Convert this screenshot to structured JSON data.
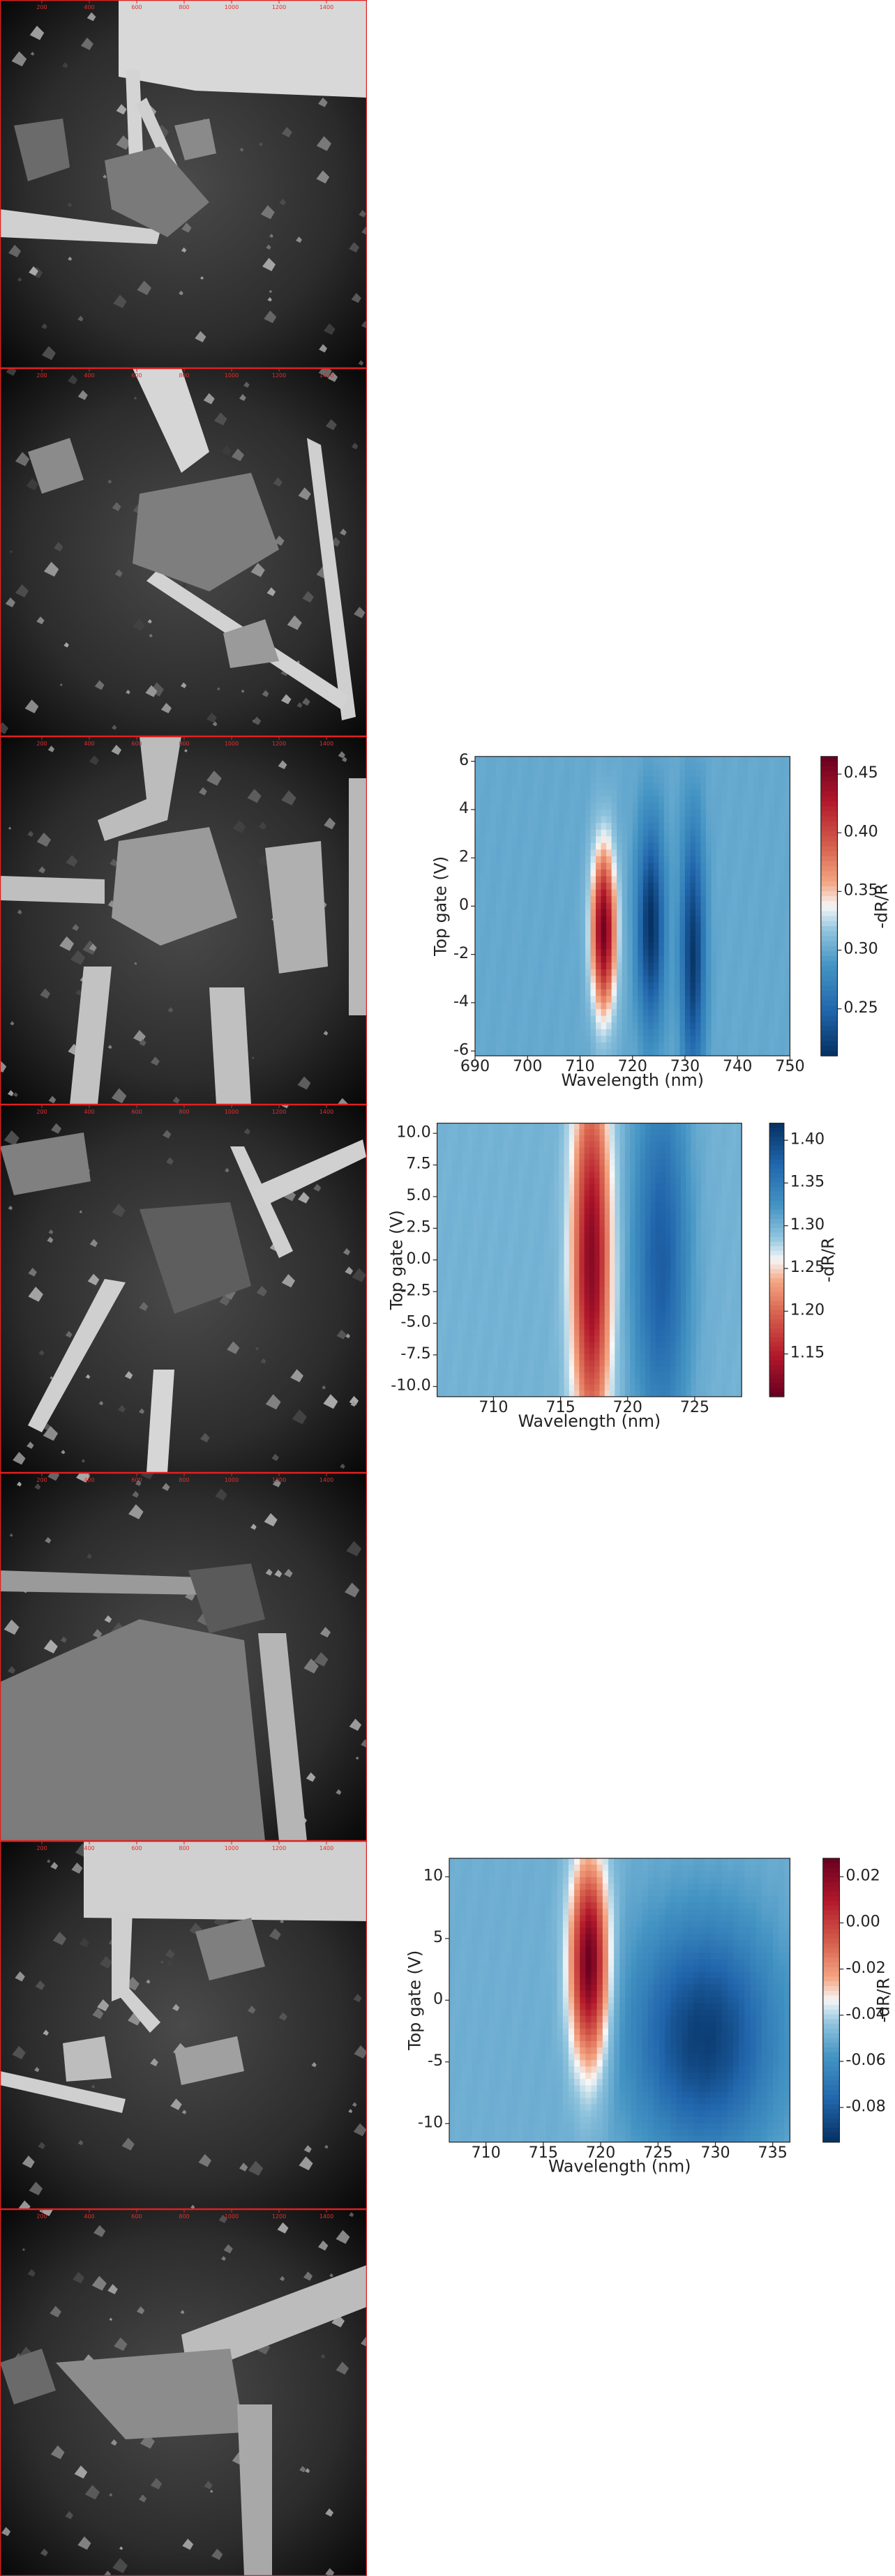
{
  "micrographs": [
    {
      "label": "micrograph-1",
      "scale_ticks": [
        "200",
        "400",
        "600",
        "800",
        "1000",
        "1200",
        "1400"
      ]
    },
    {
      "label": "micrograph-2",
      "scale_ticks": [
        "200",
        "400",
        "600",
        "800",
        "1000",
        "1200",
        "1400"
      ]
    },
    {
      "label": "micrograph-3",
      "scale_ticks": [
        "200",
        "400",
        "600",
        "800",
        "1000",
        "1200",
        "1400"
      ]
    },
    {
      "label": "micrograph-4",
      "scale_ticks": [
        "200",
        "400",
        "600",
        "800",
        "1000",
        "1200",
        "1400"
      ]
    },
    {
      "label": "micrograph-5",
      "scale_ticks": [
        "200",
        "400",
        "600",
        "800",
        "1000",
        "1200",
        "1400"
      ]
    },
    {
      "label": "micrograph-6",
      "scale_ticks": [
        "200",
        "400",
        "600",
        "800",
        "1000",
        "1200",
        "1400"
      ]
    },
    {
      "label": "micrograph-7",
      "scale_ticks": [
        "200",
        "400",
        "600",
        "800",
        "1000",
        "1200",
        "1400"
      ]
    }
  ],
  "chart_data": [
    {
      "type": "heatmap",
      "xlabel": "Wavelength (nm)",
      "ylabel": "Top gate (V)",
      "colorbar_label": "-dR/R",
      "xlim": [
        690,
        750
      ],
      "ylim": [
        -6.2,
        6.2
      ],
      "xticks": [
        690,
        700,
        710,
        720,
        730,
        740,
        750
      ],
      "yticks": [
        -6,
        -4,
        -2,
        0,
        2,
        4,
        6
      ],
      "clim": [
        0.21,
        0.465
      ],
      "cticks": [
        0.25,
        0.3,
        0.35,
        0.4,
        0.45
      ],
      "colormap": "RdBu_r",
      "background_level": 0.3,
      "features": [
        {
          "kind": "peak",
          "center_x": 714.5,
          "center_y": -1.0,
          "width_x": 2.2,
          "width_y": 3.2,
          "value": 0.46
        },
        {
          "kind": "dip",
          "center_x": 723.5,
          "center_y": -0.8,
          "width_x": 2.5,
          "width_y": 4.0,
          "value": 0.21
        },
        {
          "kind": "dip",
          "center_x": 731.5,
          "center_y": -2.0,
          "width_x": 2.2,
          "width_y": 5.0,
          "value": 0.215
        }
      ]
    },
    {
      "type": "heatmap",
      "xlabel": "Wavelength (nm)",
      "ylabel": "Top gate (V)",
      "colorbar_label": "-dR/R",
      "xlim": [
        705.8,
        728.5
      ],
      "ylim": [
        -10.8,
        10.8
      ],
      "xticks": [
        710,
        715,
        720,
        725
      ],
      "yticks": [
        -10.0,
        -7.5,
        -5.0,
        -2.5,
        0.0,
        2.5,
        5.0,
        7.5,
        10.0
      ],
      "clim": [
        1.1,
        1.42
      ],
      "cticks": [
        1.15,
        1.2,
        1.25,
        1.3,
        1.35,
        1.4
      ],
      "colormap": "RdBu",
      "background_level": 1.3,
      "features": [
        {
          "kind": "low",
          "center_x": 717.3,
          "center_y": 0.0,
          "width_x": 1.4,
          "width_y": 14.0,
          "value": 1.12
        },
        {
          "kind": "high",
          "center_x": 722.5,
          "center_y": 0.0,
          "width_x": 2.0,
          "width_y": 14.0,
          "value": 1.38
        }
      ]
    },
    {
      "type": "heatmap",
      "xlabel": "Wavelength (nm)",
      "ylabel": "Top gate (V)",
      "colorbar_label": "-dR/R",
      "xlim": [
        706.8,
        736.5
      ],
      "ylim": [
        -11.5,
        11.5
      ],
      "xticks": [
        710,
        715,
        720,
        725,
        730,
        735
      ],
      "yticks": [
        -10,
        -5,
        0,
        5,
        10
      ],
      "clim": [
        -0.095,
        0.028
      ],
      "cticks": [
        -0.08,
        -0.06,
        -0.04,
        -0.02,
        0.0,
        0.02
      ],
      "colormap": "RdBu_r",
      "background_level": -0.05,
      "features": [
        {
          "kind": "peak",
          "center_x": 719.0,
          "center_y": 3.0,
          "width_x": 1.6,
          "width_y": 8.0,
          "value": 0.028
        },
        {
          "kind": "dip",
          "center_x": 729.0,
          "center_y": -3.0,
          "width_x": 6.0,
          "width_y": 9.0,
          "value": -0.09
        }
      ]
    }
  ]
}
